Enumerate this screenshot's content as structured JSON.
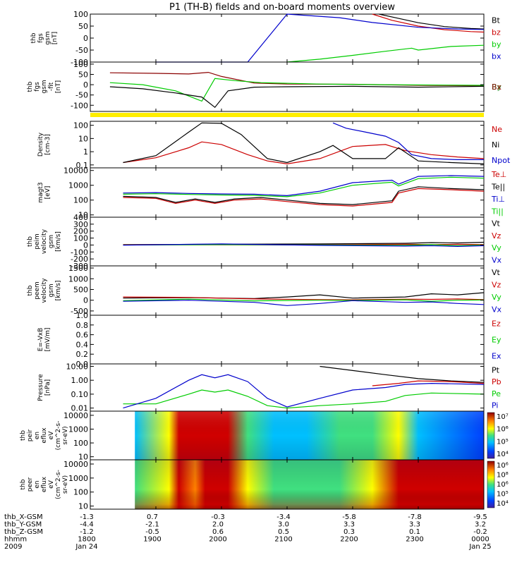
{
  "title": "P1 (TH-B) fields and on-board moments overview",
  "chart_data": {
    "type": "line",
    "title": "P1 (TH-B) fields and on-board moments overview",
    "x": {
      "ticks": [
        "1800",
        "1900",
        "2000",
        "2100",
        "2200",
        "2300",
        "0000"
      ],
      "range_hours": [
        18.0,
        24.0
      ]
    },
    "panels": [
      {
        "id": "fgs",
        "ylabel": [
          "thb",
          "fgs",
          "gsm",
          "[nT]"
        ],
        "ticks": [
          "100",
          "50",
          "0",
          "-50",
          "-100"
        ],
        "range": [
          -100,
          100
        ],
        "scale": "linear",
        "series": [
          {
            "name": "Bt",
            "color": "#000000",
            "x": [
              22.4,
              22.7,
              23.0,
              23.4,
              23.8,
              24.0
            ],
            "y": [
              100,
              82,
              64,
              48,
              40,
              38
            ]
          },
          {
            "name": "bz",
            "color": "#cc0000",
            "x": [
              22.3,
              22.6,
              23.0,
              23.4,
              23.8,
              24.0
            ],
            "y": [
              100,
              74,
              50,
              35,
              27,
              25
            ]
          },
          {
            "name": "by",
            "color": "#00cc00",
            "x": [
              21.0,
              21.5,
              22.0,
              22.5,
              22.9,
              23.0,
              23.5,
              24.0
            ],
            "y": [
              -100,
              -88,
              -72,
              -55,
              -42,
              -50,
              -35,
              -30
            ]
          },
          {
            "name": "bx",
            "color": "#0000cc",
            "x": [
              19.0,
              20.4,
              21.0,
              21.8,
              22.3,
              23.0,
              23.6,
              24.0
            ],
            "y": [
              -100,
              -100,
              100,
              85,
              65,
              45,
              38,
              36
            ]
          }
        ]
      },
      {
        "id": "fgs2",
        "ylabel": [
          "thb",
          "fgs",
          "gsm",
          "-fit",
          "[nT]"
        ],
        "ticks": [
          "100",
          "50",
          "0",
          "-50",
          "-100"
        ],
        "range": [
          -130,
          110
        ],
        "scale": "linear",
        "series": [
          {
            "name": "Bz",
            "color": "#8b0000",
            "x": [
              18.3,
              19.0,
              19.5,
              19.8,
              20.0,
              20.5,
              21.0,
              22.0,
              23.0,
              24.0
            ],
            "y": [
              58,
              55,
              52,
              60,
              40,
              8,
              3,
              2,
              -3,
              -5
            ]
          },
          {
            "name": "By",
            "color": "#00cc00",
            "x": [
              18.3,
              18.8,
              19.3,
              19.7,
              19.9,
              20.2,
              20.6,
              21.5,
              22.5,
              23.5,
              24.0
            ],
            "y": [
              10,
              0,
              -30,
              -80,
              30,
              20,
              10,
              3,
              0,
              -2,
              -3
            ]
          },
          {
            "name": "Bx",
            "color": "#000000",
            "x": [
              18.3,
              18.8,
              19.3,
              19.7,
              19.9,
              20.1,
              20.5,
              21.0,
              22.0,
              23.0,
              24.0
            ],
            "y": [
              -10,
              -20,
              -40,
              -60,
              -110,
              -30,
              -12,
              -10,
              -8,
              -12,
              -8
            ]
          }
        ],
        "labels": [
          "Bz",
          "By",
          "Bx"
        ]
      },
      {
        "id": "density",
        "ylabel": [
          "Density",
          "[cm-3]"
        ],
        "ticks": [
          "100",
          "10",
          "1",
          "0.1"
        ],
        "range": [
          0.06,
          200
        ],
        "scale": "log",
        "series": [
          {
            "name": "Ne",
            "color": "#cc0000",
            "x": [
              18.5,
              19.0,
              19.5,
              19.7,
              20.0,
              20.4,
              20.7,
              21.0,
              21.5,
              22.0,
              22.5,
              22.8,
              23.2,
              23.6,
              24.0
            ],
            "y": [
              0.15,
              0.35,
              2.0,
              5.5,
              3.5,
              0.6,
              0.2,
              0.12,
              0.3,
              2.5,
              3.5,
              1.2,
              0.6,
              0.4,
              0.3
            ]
          },
          {
            "name": "Ni",
            "color": "#000000",
            "x": [
              18.5,
              19.0,
              19.5,
              19.7,
              20.0,
              20.3,
              20.7,
              21.0,
              21.5,
              21.7,
              22.0,
              22.5,
              22.7,
              23.0,
              23.5,
              24.0
            ],
            "y": [
              0.15,
              0.5,
              30,
              150,
              140,
              20,
              0.3,
              0.15,
              1.0,
              3.0,
              0.3,
              0.3,
              2.0,
              0.2,
              0.15,
              0.12
            ]
          },
          {
            "name": "Npot",
            "color": "#0000cc",
            "x": [
              21.7,
              21.9,
              22.2,
              22.5,
              22.7,
              22.9,
              23.2,
              23.6,
              24.0
            ],
            "y": [
              150,
              60,
              30,
              15,
              5,
              0.6,
              0.3,
              0.25,
              0.25
            ]
          }
        ]
      },
      {
        "id": "temperature",
        "ylabel": [
          "magt3",
          "[eV]"
        ],
        "ticks": [
          "10000",
          "1000",
          "100",
          "10"
        ],
        "range": [
          7,
          15000
        ],
        "scale": "log",
        "series": [
          {
            "name": "Te⊥",
            "color": "#cc0000",
            "x": [
              18.5,
              19.0,
              19.3,
              19.6,
              19.9,
              20.2,
              20.6,
              21.0,
              21.5,
              22.0,
              22.6,
              22.7,
              23.0,
              23.5,
              24.0
            ],
            "y": [
              150,
              130,
              60,
              100,
              60,
              100,
              120,
              80,
              50,
              40,
              70,
              300,
              600,
              500,
              400
            ]
          },
          {
            "name": "Te||",
            "color": "#000000",
            "x": [
              18.5,
              19.0,
              19.3,
              19.6,
              19.9,
              20.2,
              20.6,
              21.0,
              21.5,
              22.0,
              22.6,
              22.7,
              23.0,
              23.5,
              24.0
            ],
            "y": [
              180,
              150,
              70,
              120,
              70,
              120,
              150,
              100,
              60,
              50,
              90,
              400,
              800,
              600,
              500
            ]
          },
          {
            "name": "Ti⊥",
            "color": "#0000cc",
            "x": [
              18.5,
              19.0,
              19.5,
              20.0,
              20.5,
              21.0,
              21.5,
              22.0,
              22.6,
              22.7,
              23.0,
              23.5,
              24.0
            ],
            "y": [
              300,
              320,
              280,
              260,
              250,
              200,
              400,
              1500,
              2200,
              1200,
              4000,
              4500,
              4000
            ]
          },
          {
            "name": "Ti||",
            "color": "#00cc00",
            "x": [
              18.5,
              19.0,
              19.5,
              20.0,
              20.5,
              21.0,
              21.5,
              22.0,
              22.6,
              22.7,
              23.0,
              23.5,
              24.0
            ],
            "y": [
              250,
              270,
              240,
              220,
              210,
              170,
              300,
              1000,
              1600,
              900,
              2800,
              3500,
              3000
            ]
          }
        ]
      },
      {
        "id": "ion_velocity",
        "ylabel": [
          "thb",
          "peim",
          "velocity",
          "gsm",
          "[km/s]"
        ],
        "ticks": [
          "400",
          "300",
          "200",
          "100",
          "0",
          "-100",
          "-200",
          "-300"
        ],
        "range": [
          -300,
          400
        ],
        "scale": "linear",
        "series": [
          {
            "name": "Vt",
            "color": "#000000",
            "x": [
              18.5,
              20.0,
              21.5,
              22.8,
              23.2,
              23.6,
              24.0
            ],
            "y": [
              5,
              10,
              15,
              25,
              35,
              30,
              40
            ]
          },
          {
            "name": "Vz",
            "color": "#cc0000",
            "x": [
              18.5,
              20.0,
              21.5,
              22.8,
              23.2,
              23.6,
              24.0
            ],
            "y": [
              5,
              3,
              2,
              10,
              5,
              10,
              5
            ]
          },
          {
            "name": "Vy",
            "color": "#00cc00",
            "x": [
              18.5,
              20.0,
              21.5,
              22.8,
              23.2,
              23.6,
              24.0
            ],
            "y": [
              0,
              5,
              0,
              -5,
              5,
              -10,
              0
            ]
          },
          {
            "name": "Vx",
            "color": "#0000cc",
            "x": [
              18.5,
              20.0,
              21.5,
              22.8,
              23.2,
              23.6,
              24.0
            ],
            "y": [
              -2,
              15,
              -5,
              -15,
              -10,
              -20,
              -10
            ]
          }
        ],
        "labels": [
          "Vt",
          "Vz",
          "Vy",
          "Vx"
        ]
      },
      {
        "id": "electron_velocity",
        "ylabel": [
          "thb",
          "peem",
          "velocity",
          "gsm",
          "[km/s]"
        ],
        "ticks": [
          "1500",
          "1000",
          "500",
          "0",
          "-500"
        ],
        "range": [
          -700,
          1600
        ],
        "scale": "linear",
        "series": [
          {
            "name": "Vt",
            "color": "#000000",
            "x": [
              18.5,
              19.5,
              20.5,
              21.0,
              21.5,
              22.0,
              22.8,
              23.2,
              23.6,
              24.0
            ],
            "y": [
              100,
              120,
              80,
              150,
              250,
              100,
              150,
              300,
              250,
              350
            ]
          },
          {
            "name": "Vz",
            "color": "#cc0000",
            "x": [
              18.5,
              19.5,
              20.5,
              21.5,
              22.0,
              22.8,
              23.2,
              23.6,
              24.0
            ],
            "y": [
              150,
              130,
              60,
              30,
              20,
              50,
              40,
              60,
              30
            ]
          },
          {
            "name": "Vy",
            "color": "#00cc00",
            "x": [
              18.5,
              19.5,
              20.5,
              21.5,
              22.0,
              22.8,
              23.2,
              23.6,
              24.0
            ],
            "y": [
              -20,
              50,
              -30,
              0,
              -10,
              20,
              -50,
              0,
              10
            ]
          },
          {
            "name": "Vx",
            "color": "#0000cc",
            "x": [
              18.5,
              19.5,
              20.5,
              21.0,
              21.5,
              22.0,
              22.8,
              23.2,
              23.6,
              24.0
            ],
            "y": [
              -50,
              0,
              -100,
              -250,
              -150,
              -20,
              -100,
              -80,
              -150,
              -200
            ]
          }
        ],
        "labels": [
          "Vt",
          "Vz",
          "Vy",
          "Vx"
        ]
      },
      {
        "id": "efield",
        "ylabel": [
          "E=-VxB",
          "[mV/m]"
        ],
        "ticks": [
          "1.0",
          "0.8",
          "0.6",
          "0.4",
          "0.2",
          "0.0"
        ],
        "range": [
          0,
          1.0
        ],
        "scale": "linear",
        "series": [],
        "labels": [
          "Ez",
          "Ey",
          "Ex"
        ]
      },
      {
        "id": "pressure",
        "ylabel": [
          "Pressure",
          "[nPa]"
        ],
        "ticks": [
          "10.00",
          "1.00",
          "0.10",
          "0.01"
        ],
        "range": [
          0.006,
          15
        ],
        "scale": "log",
        "series": [
          {
            "name": "Pt",
            "color": "#000000",
            "x": [
              21.5,
              22.0,
              22.5,
              23.0,
              23.5,
              24.0
            ],
            "y": [
              10,
              5,
              2.5,
              1.3,
              0.9,
              0.7
            ]
          },
          {
            "name": "Pb",
            "color": "#cc0000",
            "x": [
              22.3,
              22.7,
              23.0,
              23.5,
              24.0
            ],
            "y": [
              0.4,
              0.6,
              0.9,
              0.8,
              0.6
            ]
          },
          {
            "name": "Pe",
            "color": "#00cc00",
            "x": [
              18.5,
              19.0,
              19.5,
              19.7,
              19.9,
              20.1,
              20.4,
              20.7,
              21.0,
              21.5,
              22.0,
              22.5,
              22.8,
              23.2,
              24.0
            ],
            "y": [
              0.02,
              0.02,
              0.1,
              0.2,
              0.14,
              0.2,
              0.07,
              0.015,
              0.01,
              0.015,
              0.02,
              0.03,
              0.08,
              0.12,
              0.1
            ]
          },
          {
            "name": "Pi",
            "color": "#0000cc",
            "x": [
              18.5,
              19.0,
              19.5,
              19.7,
              19.9,
              20.1,
              20.4,
              20.7,
              21.0,
              21.5,
              22.0,
              22.5,
              22.8,
              23.2,
              24.0
            ],
            "y": [
              0.01,
              0.05,
              1.0,
              2.5,
              1.5,
              2.5,
              0.8,
              0.05,
              0.012,
              0.05,
              0.2,
              0.3,
              0.5,
              0.6,
              0.5
            ]
          }
        ]
      }
    ],
    "spectrograms": [
      {
        "id": "ion_spec",
        "ylabel": [
          "thb",
          "peir",
          "en",
          "eflux",
          "eV",
          "(cm^2-s-",
          "sr-eV)"
        ],
        "ticks": [
          "10000",
          "1000",
          "100",
          "10"
        ],
        "colorbar_ticks": [
          "10⁷",
          "10⁶",
          "10⁵",
          "10⁴"
        ]
      },
      {
        "id": "electron_spec",
        "ylabel": [
          "thb",
          "peer",
          "en",
          "eflux",
          "eV",
          "(cm^2-s-",
          "sr-eV)"
        ],
        "ticks": [
          "10000",
          "1000",
          "100",
          "10"
        ],
        "colorbar_ticks": [
          "10⁶",
          "10⁸",
          "10⁶",
          "10⁵",
          "10⁴"
        ]
      }
    ],
    "footer": {
      "labels": [
        "thb_X-GSM",
        "thb_Y-GSM",
        "thb_Z-GSM",
        "hhmm",
        "2009"
      ],
      "rows": [
        [
          "-1.3",
          "0.7",
          "-0.3",
          "-3.4",
          "-5.8",
          "-7.8",
          "-9.5"
        ],
        [
          "-4.4",
          "-2.1",
          "2.0",
          "3.0",
          "3.3",
          "3.3",
          "3.2"
        ],
        [
          "-1.2",
          "-0.5",
          "0.6",
          "0.5",
          "0.3",
          "0.1",
          "-0.2"
        ],
        [
          "1800",
          "1900",
          "2000",
          "2100",
          "2200",
          "2300",
          "0000"
        ],
        [
          "Jan 24",
          "",
          "",
          "",
          "",
          "",
          "Jan 25"
        ]
      ]
    }
  }
}
